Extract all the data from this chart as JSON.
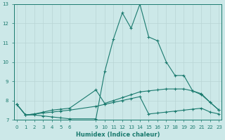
{
  "xlabel": "Humidex (Indice chaleur)",
  "bg_color": "#cce8e8",
  "line_color": "#1a7a6e",
  "grid_color": "#b8d4d4",
  "x_ticks": [
    0,
    1,
    2,
    3,
    4,
    5,
    6,
    9,
    10,
    11,
    12,
    13,
    14,
    15,
    16,
    17,
    18,
    19,
    20,
    21,
    22,
    23
  ],
  "x_tick_labels": [
    "0",
    "1",
    "2",
    "3",
    "4",
    "5",
    "6",
    "9",
    "10",
    "11",
    "12",
    "13",
    "14",
    "15",
    "16",
    "17",
    "18",
    "19",
    "20",
    "21",
    "22",
    "23"
  ],
  "ylim": [
    7.0,
    13.0
  ],
  "xlim": [
    -0.3,
    23.3
  ],
  "yticks": [
    7,
    8,
    9,
    10,
    11,
    12,
    13
  ],
  "line1_x": [
    0,
    1,
    2,
    3,
    4,
    5,
    6,
    9,
    10,
    11,
    12,
    13,
    14,
    15,
    16,
    17,
    18,
    19,
    20,
    21,
    22,
    23
  ],
  "line1_y": [
    7.8,
    7.25,
    7.25,
    7.2,
    7.15,
    7.1,
    7.05,
    7.05,
    9.5,
    11.2,
    12.55,
    11.75,
    13.0,
    11.3,
    11.1,
    10.0,
    9.3,
    9.3,
    8.5,
    8.3,
    7.9,
    7.5
  ],
  "line2_x": [
    0,
    1,
    2,
    3,
    4,
    5,
    6,
    9,
    10,
    11,
    12,
    13,
    14,
    15,
    16,
    17,
    18,
    19,
    20,
    21,
    22,
    23
  ],
  "line2_y": [
    7.8,
    7.25,
    7.3,
    7.4,
    7.5,
    7.55,
    7.6,
    8.55,
    7.85,
    8.0,
    8.15,
    8.3,
    8.45,
    8.5,
    8.55,
    8.6,
    8.6,
    8.6,
    8.5,
    8.35,
    7.9,
    7.5
  ],
  "line3_x": [
    0,
    1,
    2,
    3,
    4,
    5,
    6,
    9,
    10,
    11,
    12,
    13,
    14,
    15,
    16,
    17,
    18,
    19,
    20,
    21,
    22,
    23
  ],
  "line3_y": [
    7.8,
    7.25,
    7.3,
    7.35,
    7.4,
    7.45,
    7.5,
    7.7,
    7.8,
    7.9,
    8.0,
    8.1,
    8.2,
    7.3,
    7.35,
    7.4,
    7.45,
    7.5,
    7.55,
    7.6,
    7.4,
    7.3
  ]
}
